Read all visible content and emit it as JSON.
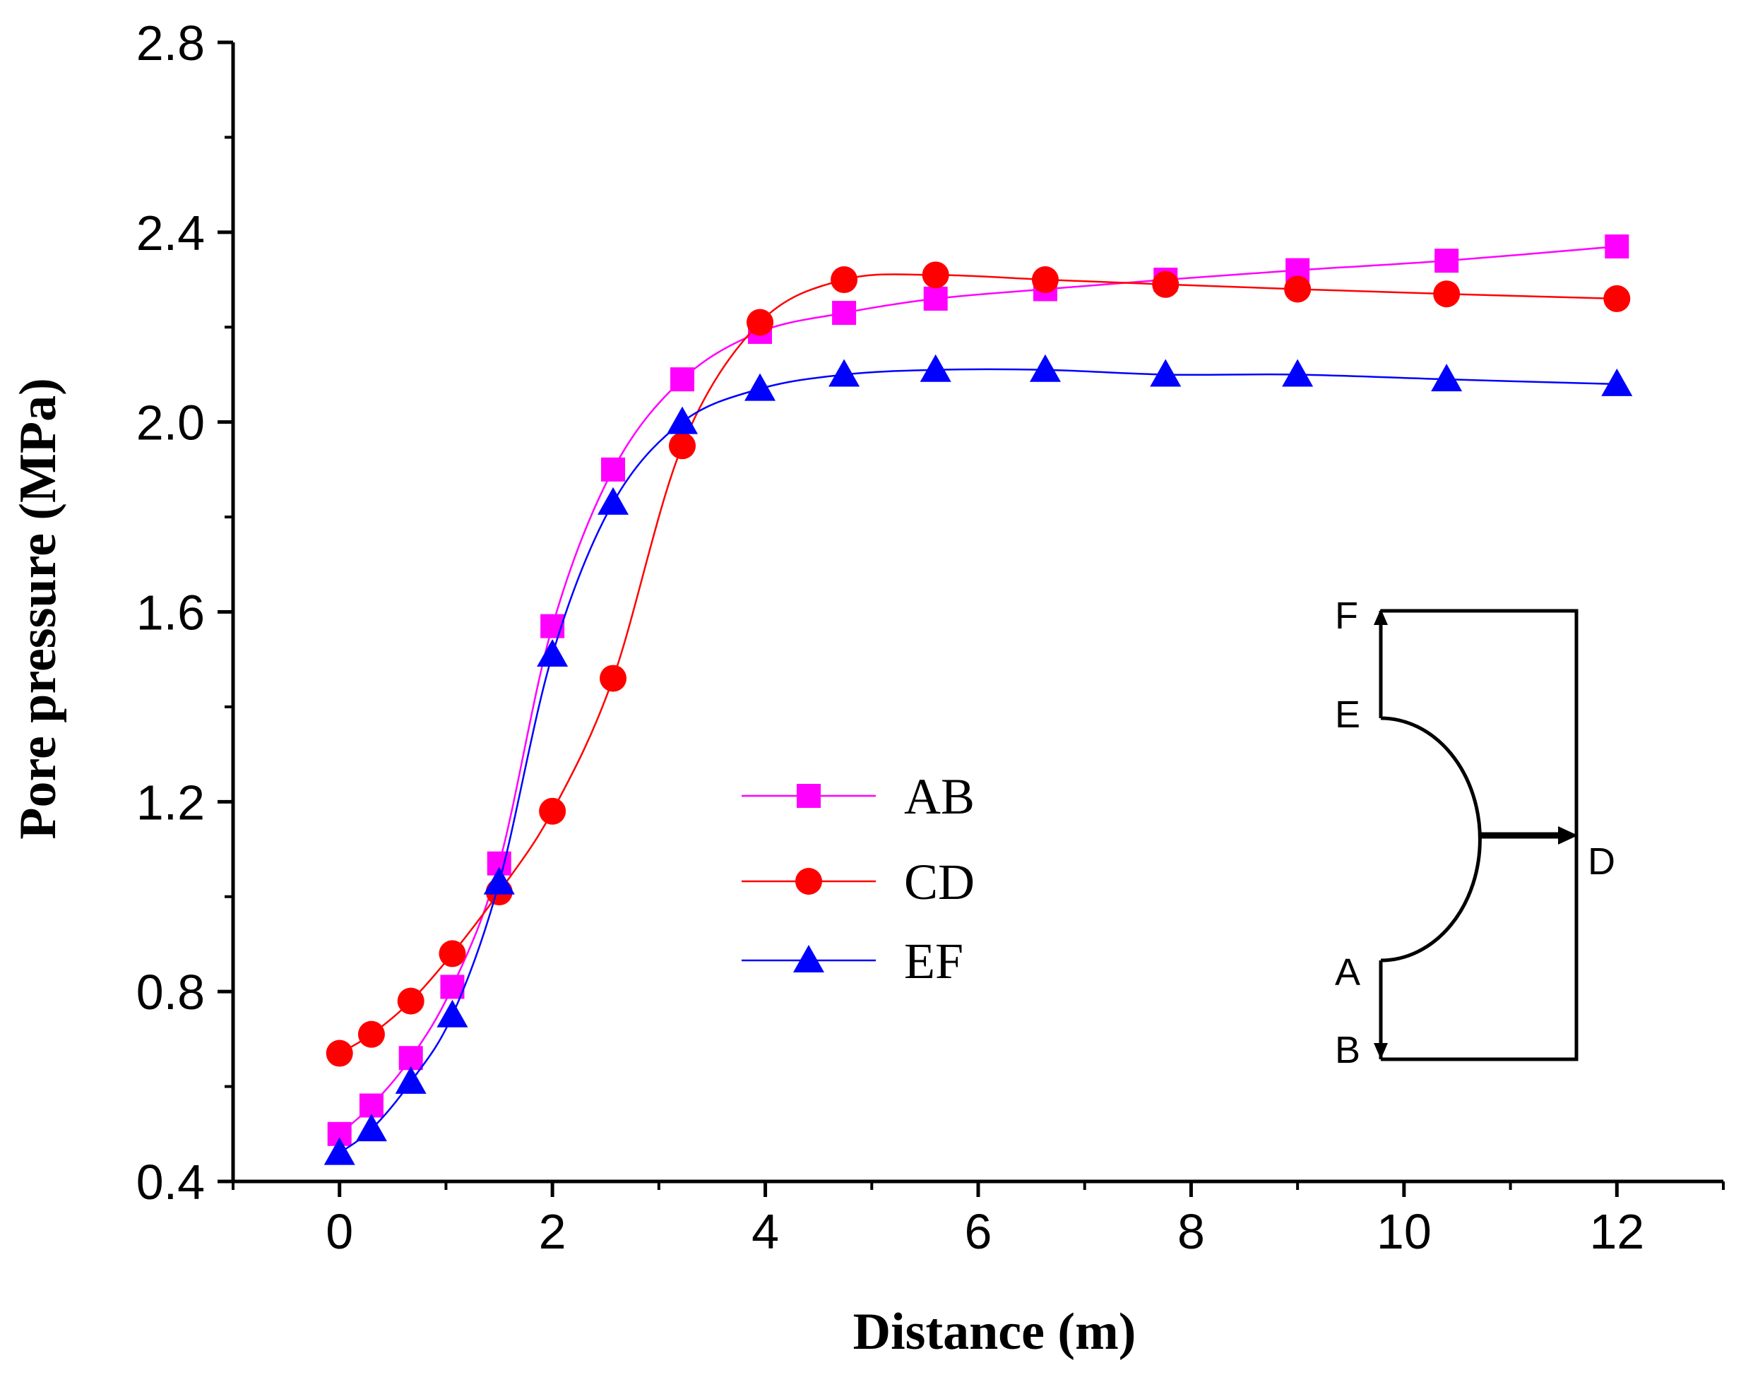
{
  "chart_data": {
    "type": "line",
    "title": "",
    "xlabel": "Distance (m)",
    "ylabel": "Pore pressure (MPa)",
    "xlim": [
      -1,
      13
    ],
    "ylim": [
      0.4,
      2.8
    ],
    "xticks": [
      0,
      2,
      4,
      6,
      8,
      10,
      12
    ],
    "xtick_labels": [
      "0",
      "2",
      "4",
      "6",
      "8",
      "10",
      "12"
    ],
    "yticks": [
      0.4,
      0.8,
      1.2,
      1.6,
      2.0,
      2.4,
      2.8
    ],
    "ytick_labels": [
      "0.4",
      "0.8",
      "1.2",
      "1.6",
      "2.0",
      "2.4",
      "2.8"
    ],
    "legend_position": "center",
    "series": [
      {
        "name": "AB",
        "color": "#ff00ff",
        "marker": "square",
        "x": [
          0,
          0.3,
          0.67,
          1.06,
          1.5,
          2.0,
          2.57,
          3.22,
          3.95,
          4.74,
          5.6,
          6.63,
          7.76,
          9.0,
          10.4,
          12.0
        ],
        "y": [
          0.5,
          0.56,
          0.66,
          0.81,
          1.07,
          1.57,
          1.9,
          2.09,
          2.19,
          2.23,
          2.26,
          2.28,
          2.3,
          2.32,
          2.34,
          2.37
        ]
      },
      {
        "name": "CD",
        "color": "#ff0000",
        "marker": "circle",
        "x": [
          0,
          0.3,
          0.67,
          1.06,
          1.5,
          2.0,
          2.57,
          3.22,
          3.95,
          4.74,
          5.6,
          6.63,
          7.76,
          9.0,
          10.4,
          12.0
        ],
        "y": [
          0.67,
          0.71,
          0.78,
          0.88,
          1.01,
          1.18,
          1.46,
          1.95,
          2.21,
          2.3,
          2.31,
          2.3,
          2.29,
          2.28,
          2.27,
          2.26
        ]
      },
      {
        "name": "EF",
        "color": "#0000ff",
        "marker": "triangle",
        "x": [
          0,
          0.3,
          0.67,
          1.06,
          1.5,
          2.0,
          2.57,
          3.22,
          3.95,
          4.74,
          5.6,
          6.63,
          7.76,
          9.0,
          10.4,
          12.0
        ],
        "y": [
          0.46,
          0.51,
          0.61,
          0.75,
          1.03,
          1.51,
          1.83,
          2.0,
          2.07,
          2.1,
          2.11,
          2.11,
          2.1,
          2.1,
          2.09,
          2.08
        ]
      }
    ],
    "inset": {
      "description": "geometry sketch",
      "labels": [
        "F",
        "E",
        "A",
        "B",
        "D"
      ]
    }
  }
}
